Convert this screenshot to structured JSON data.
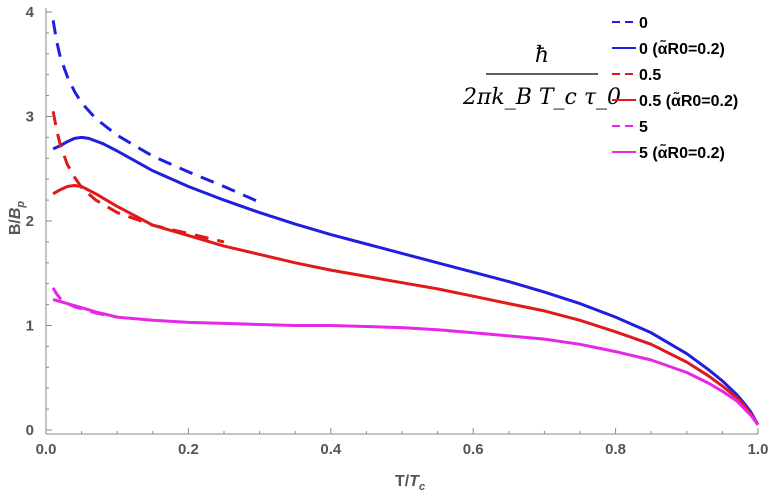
{
  "chart_data": {
    "type": "line",
    "title": "",
    "xlabel": "T/T_c",
    "ylabel": "B/B_p",
    "xlabel_text": {
      "main": "T/",
      "var": "T",
      "sub": "c"
    },
    "ylabel_text": {
      "main": "B/",
      "var": "B",
      "sub": "p"
    },
    "xlim": [
      0.0,
      1.0
    ],
    "ylim": [
      0,
      4
    ],
    "xticks": [
      "0.0",
      "0.2",
      "0.4",
      "0.6",
      "0.8",
      "1.0"
    ],
    "yticks": [
      "0",
      "1",
      "2",
      "3",
      "4"
    ],
    "grid": false,
    "legend_position": "top-right",
    "legend_title": {
      "numerator": "ħ",
      "denominator": "2πk_B T_c τ_0"
    },
    "colors": {
      "blue": "#1f1fe0",
      "red": "#e01a1a",
      "magenta": "#e628e6",
      "axis": "#888888"
    },
    "series": [
      {
        "name": "0",
        "color": "#1f1fe0",
        "dash": "dashed",
        "x": [
          0.01,
          0.015,
          0.02,
          0.03,
          0.04,
          0.05,
          0.07,
          0.1,
          0.15,
          0.2,
          0.25,
          0.3
        ],
        "y": [
          3.92,
          3.72,
          3.57,
          3.38,
          3.24,
          3.13,
          2.98,
          2.82,
          2.62,
          2.47,
          2.33,
          2.18
        ]
      },
      {
        "name": "0 (α̃R0=0.2)",
        "color": "#1f1fe0",
        "dash": "solid",
        "x": [
          0.01,
          0.02,
          0.03,
          0.04,
          0.05,
          0.06,
          0.08,
          0.1,
          0.15,
          0.2,
          0.25,
          0.3,
          0.35,
          0.4,
          0.45,
          0.5,
          0.55,
          0.6,
          0.65,
          0.7,
          0.75,
          0.8,
          0.85,
          0.9,
          0.93,
          0.95,
          0.97,
          0.98,
          0.99,
          1.0
        ],
        "y": [
          2.69,
          2.72,
          2.76,
          2.79,
          2.8,
          2.79,
          2.74,
          2.67,
          2.48,
          2.33,
          2.2,
          2.08,
          1.97,
          1.87,
          1.78,
          1.69,
          1.6,
          1.51,
          1.42,
          1.32,
          1.21,
          1.08,
          0.93,
          0.73,
          0.58,
          0.47,
          0.34,
          0.26,
          0.17,
          0.05
        ]
      },
      {
        "name": "0.5",
        "color": "#e01a1a",
        "dash": "dashed",
        "x": [
          0.01,
          0.015,
          0.02,
          0.03,
          0.04,
          0.05,
          0.07,
          0.1,
          0.15,
          0.2,
          0.25
        ],
        "y": [
          3.05,
          2.87,
          2.73,
          2.54,
          2.42,
          2.32,
          2.2,
          2.08,
          1.96,
          1.88,
          1.8
        ]
      },
      {
        "name": "0.5 (α̃R0=0.2)",
        "color": "#e01a1a",
        "dash": "solid",
        "x": [
          0.01,
          0.02,
          0.03,
          0.04,
          0.05,
          0.07,
          0.1,
          0.15,
          0.2,
          0.25,
          0.3,
          0.35,
          0.4,
          0.45,
          0.5,
          0.55,
          0.6,
          0.65,
          0.7,
          0.75,
          0.8,
          0.85,
          0.9,
          0.93,
          0.95,
          0.97,
          0.98,
          0.99,
          1.0
        ],
        "y": [
          2.26,
          2.3,
          2.33,
          2.34,
          2.33,
          2.26,
          2.14,
          1.96,
          1.86,
          1.76,
          1.68,
          1.6,
          1.53,
          1.47,
          1.41,
          1.35,
          1.28,
          1.21,
          1.14,
          1.05,
          0.94,
          0.82,
          0.65,
          0.52,
          0.42,
          0.31,
          0.24,
          0.15,
          0.05
        ]
      },
      {
        "name": "5",
        "color": "#e628e6",
        "dash": "dashed",
        "x": [
          0.01,
          0.015,
          0.02,
          0.03,
          0.04,
          0.05,
          0.07,
          0.1
        ],
        "y": [
          1.36,
          1.3,
          1.26,
          1.21,
          1.18,
          1.16,
          1.12,
          1.08
        ]
      },
      {
        "name": "5 (α̃R0=0.2)",
        "color": "#e628e6",
        "dash": "solid",
        "x": [
          0.01,
          0.02,
          0.03,
          0.05,
          0.07,
          0.1,
          0.15,
          0.2,
          0.25,
          0.3,
          0.35,
          0.4,
          0.45,
          0.5,
          0.55,
          0.6,
          0.65,
          0.7,
          0.75,
          0.8,
          0.85,
          0.9,
          0.93,
          0.95,
          0.97,
          0.98,
          0.99,
          1.0
        ],
        "y": [
          1.25,
          1.23,
          1.21,
          1.17,
          1.13,
          1.08,
          1.05,
          1.03,
          1.02,
          1.01,
          1.0,
          1.0,
          0.99,
          0.98,
          0.96,
          0.93,
          0.9,
          0.87,
          0.82,
          0.75,
          0.67,
          0.55,
          0.45,
          0.37,
          0.28,
          0.21,
          0.14,
          0.05
        ]
      }
    ]
  }
}
